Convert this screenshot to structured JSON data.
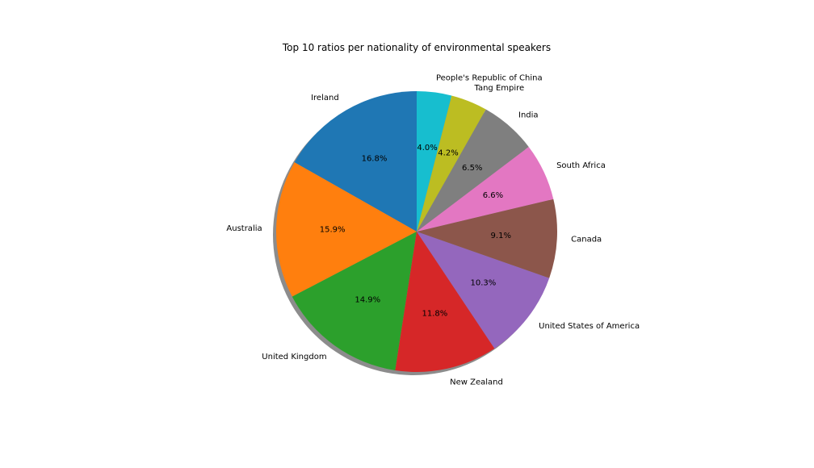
{
  "chart_data": {
    "type": "pie",
    "title": "Top 10 ratios per nationality of environmental speakers",
    "start_angle_deg": 90,
    "direction": "counterclockwise",
    "shadow": true,
    "legend": "none",
    "slices": [
      {
        "label": "Ireland",
        "value": 16.8,
        "pct_label": "16.8%",
        "color": "#1f77b4"
      },
      {
        "label": "Australia",
        "value": 15.9,
        "pct_label": "15.9%",
        "color": "#ff7f0e"
      },
      {
        "label": "United Kingdom",
        "value": 14.9,
        "pct_label": "14.9%",
        "color": "#2ca02c"
      },
      {
        "label": "New Zealand",
        "value": 11.8,
        "pct_label": "11.8%",
        "color": "#d62728"
      },
      {
        "label": "United States of America",
        "value": 10.3,
        "pct_label": "10.3%",
        "color": "#9467bd"
      },
      {
        "label": "Canada",
        "value": 9.1,
        "pct_label": "9.1%",
        "color": "#8c564b"
      },
      {
        "label": "South Africa",
        "value": 6.6,
        "pct_label": "6.6%",
        "color": "#e377c2"
      },
      {
        "label": "India",
        "value": 6.5,
        "pct_label": "6.5%",
        "color": "#7f7f7f"
      },
      {
        "label": "Tang Empire",
        "value": 4.2,
        "pct_label": "4.2%",
        "color": "#bcbd22"
      },
      {
        "label": "People's Republic of China",
        "value": 4.0,
        "pct_label": "4.0%",
        "color": "#17becf"
      }
    ]
  }
}
